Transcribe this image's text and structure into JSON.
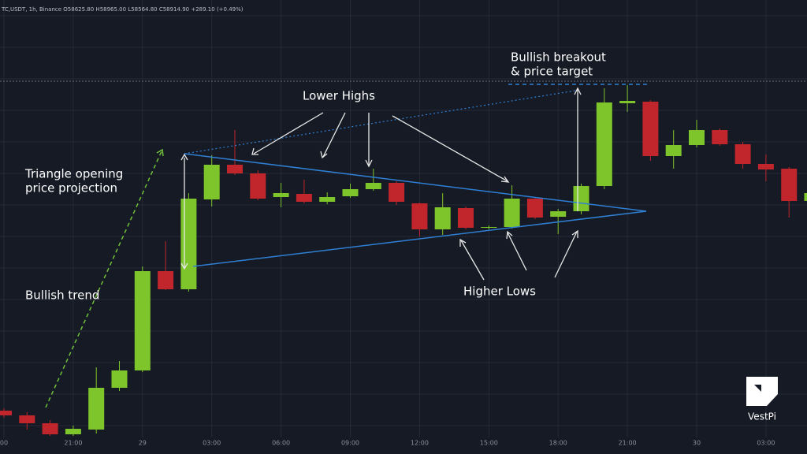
{
  "chart_data": {
    "type": "candlestick",
    "header": "TC,USDT, 1h, Binance O58625.80 H58965.00 L58564.80 C58914.90 +289.10 (+0.49%)",
    "categories": [
      "00",
      null,
      null,
      "21:00",
      null,
      null,
      "29",
      null,
      null,
      "03:00",
      null,
      null,
      "06:00",
      null,
      null,
      "09:00",
      null,
      null,
      "12:00",
      null,
      null,
      "15:00",
      null,
      null,
      "18:00",
      null,
      null,
      "21:00",
      null,
      null,
      "30",
      null,
      null,
      "03:00",
      null,
      null
    ],
    "open": [
      54790,
      54730,
      54630,
      54490,
      54550,
      55080,
      55300,
      56560,
      56330,
      57470,
      57910,
      57800,
      57500,
      57540,
      57440,
      57510,
      57600,
      57680,
      57420,
      57090,
      57360,
      57110,
      57120,
      57480,
      57250,
      57320,
      57640,
      58690,
      58710,
      58020,
      58160,
      58350,
      58170,
      57920,
      57860,
      57450
    ],
    "high": [
      54820,
      54770,
      54670,
      54600,
      55340,
      55420,
      56620,
      56940,
      57550,
      58030,
      58350,
      57840,
      57680,
      57720,
      57560,
      57670,
      57860,
      57700,
      57430,
      57550,
      57380,
      57140,
      57650,
      57500,
      57350,
      57670,
      58880,
      58920,
      58730,
      58350,
      58480,
      58370,
      58200,
      58040,
      57880,
      57600
    ],
    "low": [
      54700,
      54550,
      54470,
      54470,
      54500,
      55040,
      55280,
      56320,
      56300,
      57380,
      57780,
      57460,
      57370,
      57420,
      57410,
      57490,
      57580,
      57400,
      57000,
      57020,
      57090,
      57090,
      57100,
      57220,
      57030,
      57280,
      57600,
      58580,
      57960,
      57860,
      58130,
      58150,
      57860,
      57700,
      57240,
      57420
    ],
    "close": [
      54730,
      54630,
      54490,
      54560,
      55080,
      55300,
      56560,
      56330,
      57480,
      57910,
      57800,
      57480,
      57550,
      57440,
      57500,
      57600,
      57680,
      57440,
      57090,
      57370,
      57110,
      57120,
      57480,
      57240,
      57320,
      57640,
      58700,
      58720,
      58020,
      58160,
      58350,
      58170,
      57920,
      57850,
      57450,
      57550
    ],
    "up_color": "#7dc52b",
    "down_color": "#c0262b",
    "ylim": [
      54240,
      60000
    ],
    "grid": true,
    "annotations": {
      "lower_highs": "Lower Highs",
      "higher_lows": "Higher Lows",
      "breakout_1": "Bullish breakout",
      "breakout_2": "& price target",
      "projection_1": "Triangle opening",
      "projection_2": "price projection",
      "trend": "Bullish trend"
    },
    "logo": "VestPi"
  }
}
